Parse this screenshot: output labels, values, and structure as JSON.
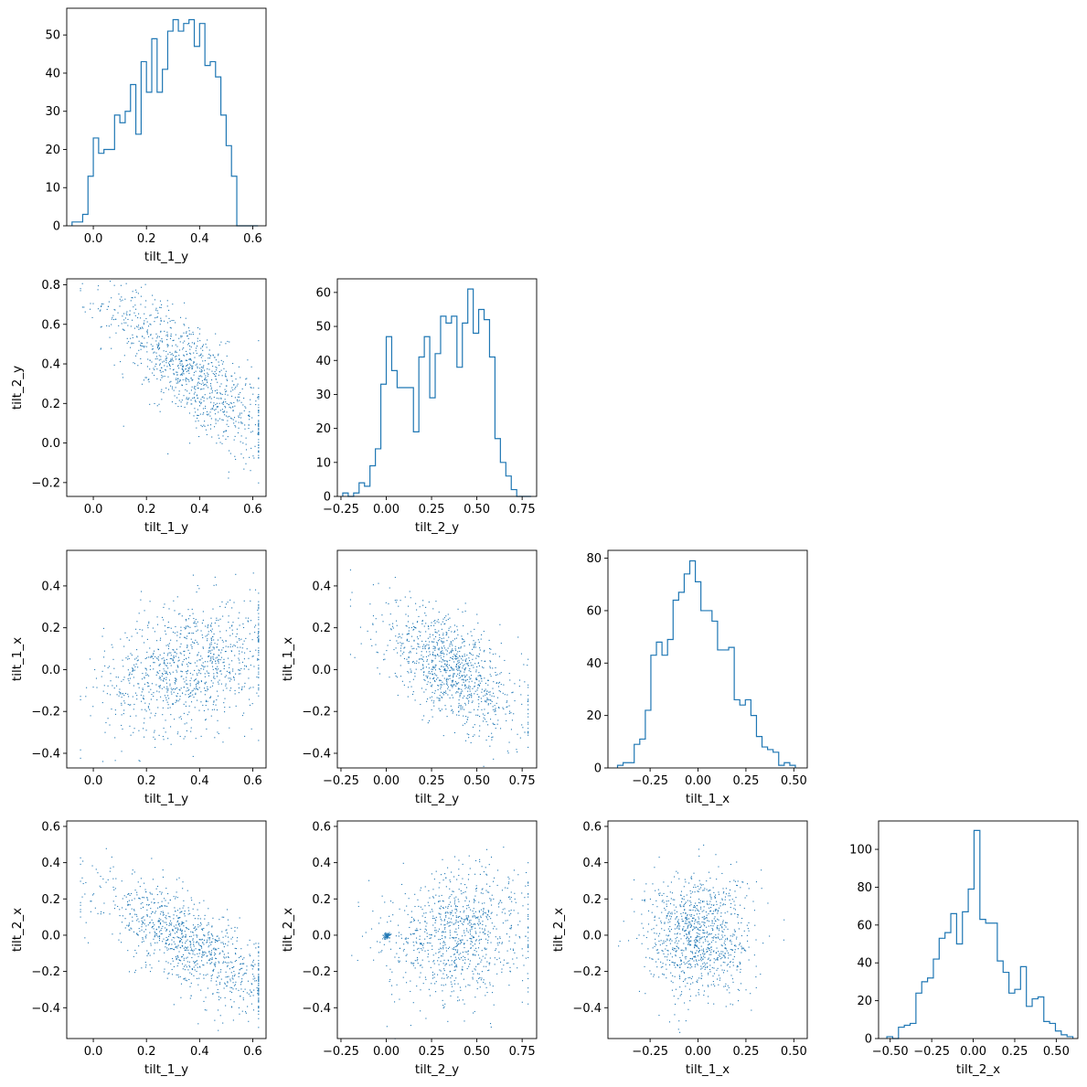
{
  "chart_data": {
    "type": "corner",
    "variables": [
      "tilt_1_y",
      "tilt_2_y",
      "tilt_1_x",
      "tilt_2_x"
    ],
    "line_color": "#1f77b4",
    "axes": {
      "tilt_1_y": {
        "lim": [
          -0.1,
          0.65
        ],
        "ticks": [
          0.0,
          0.2,
          0.4,
          0.6
        ],
        "tick_labels": [
          "0.0",
          "0.2",
          "0.4",
          "0.6"
        ]
      },
      "tilt_2_y": {
        "lim": [
          -0.27,
          0.83
        ],
        "ticks": [
          -0.25,
          0.0,
          0.25,
          0.5,
          0.75
        ],
        "tick_labels": [
          "−0.25",
          "0.00",
          "0.25",
          "0.50",
          "0.75"
        ],
        "ticks_y": [
          -0.2,
          0.0,
          0.2,
          0.4,
          0.6,
          0.8
        ],
        "tick_labels_y": [
          "−0.2",
          "0.0",
          "0.2",
          "0.4",
          "0.6",
          "0.8"
        ]
      },
      "tilt_1_x": {
        "lim": [
          -0.47,
          0.57
        ],
        "ticks": [
          -0.25,
          0.0,
          0.25,
          0.5
        ],
        "tick_labels": [
          "−0.25",
          "0.00",
          "0.25",
          "0.50"
        ],
        "ticks_y": [
          -0.4,
          -0.2,
          0.0,
          0.2,
          0.4
        ],
        "tick_labels_y": [
          "−0.4",
          "−0.2",
          "0.0",
          "0.2",
          "0.4"
        ]
      },
      "tilt_2_x": {
        "lim": [
          -0.57,
          0.63
        ],
        "ticks": [
          -0.5,
          -0.25,
          0.0,
          0.25,
          0.5
        ],
        "tick_labels": [
          "−0.50",
          "−0.25",
          "0.00",
          "0.25",
          "0.50"
        ],
        "ticks_y": [
          -0.4,
          -0.2,
          0.0,
          0.2,
          0.4,
          0.6
        ],
        "tick_labels_y": [
          "−0.4",
          "−0.2",
          "0.0",
          "0.2",
          "0.4",
          "0.6"
        ]
      }
    },
    "histograms": [
      {
        "variable": "tilt_1_y",
        "bin_edges": [
          -0.08,
          -0.06,
          -0.04,
          -0.02,
          0.0,
          0.02,
          0.04,
          0.06,
          0.08,
          0.1,
          0.12,
          0.14,
          0.16,
          0.18,
          0.2,
          0.22,
          0.24,
          0.26,
          0.28,
          0.3,
          0.32,
          0.34,
          0.36,
          0.38,
          0.4,
          0.42,
          0.44,
          0.46,
          0.48,
          0.5,
          0.52,
          0.54,
          0.56,
          0.58,
          0.6,
          0.62
        ],
        "counts": [
          1,
          1,
          3,
          13,
          23,
          19,
          20,
          20,
          29,
          27,
          30,
          37,
          24,
          43,
          35,
          49,
          35,
          41,
          51,
          54,
          51,
          53,
          54,
          47,
          53,
          42,
          43,
          39,
          29,
          21,
          13,
          0,
          0,
          0,
          0
        ],
        "ylim": [
          0,
          57
        ],
        "yticks": [
          0,
          10,
          20,
          30,
          40,
          50
        ],
        "ytick_labels": [
          "0",
          "10",
          "20",
          "30",
          "40",
          "50"
        ]
      },
      {
        "variable": "tilt_2_y",
        "bin_edges": [
          -0.24,
          -0.21,
          -0.18,
          -0.15,
          -0.12,
          -0.09,
          -0.06,
          -0.03,
          0.0,
          0.03,
          0.06,
          0.09,
          0.12,
          0.15,
          0.18,
          0.21,
          0.24,
          0.27,
          0.3,
          0.33,
          0.36,
          0.39,
          0.42,
          0.45,
          0.48,
          0.51,
          0.54,
          0.57,
          0.6,
          0.63,
          0.66,
          0.69,
          0.72,
          0.75,
          0.78,
          0.8
        ],
        "counts": [
          1,
          0,
          1,
          4,
          3,
          9,
          14,
          33,
          47,
          37,
          32,
          32,
          32,
          19,
          41,
          47,
          29,
          42,
          53,
          51,
          53,
          38,
          51,
          61,
          48,
          55,
          52,
          41,
          17,
          10,
          6,
          2,
          0,
          0,
          0
        ],
        "ylim": [
          0,
          64
        ],
        "yticks": [
          0,
          10,
          20,
          30,
          40,
          50,
          60
        ],
        "ytick_labels": [
          "0",
          "10",
          "20",
          "30",
          "40",
          "50",
          "60"
        ]
      },
      {
        "variable": "tilt_1_x",
        "bin_edges": [
          -0.42,
          -0.391,
          -0.362,
          -0.333,
          -0.304,
          -0.275,
          -0.246,
          -0.217,
          -0.188,
          -0.159,
          -0.13,
          -0.101,
          -0.072,
          -0.043,
          -0.014,
          0.015,
          0.044,
          0.073,
          0.102,
          0.131,
          0.16,
          0.189,
          0.218,
          0.247,
          0.276,
          0.305,
          0.334,
          0.363,
          0.392,
          0.421,
          0.45,
          0.479,
          0.508
        ],
        "counts": [
          1,
          2,
          2,
          9,
          11,
          22,
          43,
          48,
          43,
          49,
          64,
          67,
          74,
          79,
          71,
          60,
          60,
          56,
          45,
          45,
          46,
          26,
          24,
          26,
          20,
          12,
          8,
          7,
          6,
          1,
          2,
          1
        ],
        "ylim": [
          0,
          83
        ],
        "yticks": [
          0,
          20,
          40,
          60,
          80
        ],
        "ytick_labels": [
          "0",
          "20",
          "40",
          "60",
          "80"
        ]
      },
      {
        "variable": "tilt_2_x",
        "bin_edges": [
          -0.52,
          -0.485,
          -0.45,
          -0.415,
          -0.38,
          -0.345,
          -0.31,
          -0.275,
          -0.24,
          -0.205,
          -0.17,
          -0.135,
          -0.1,
          -0.065,
          -0.03,
          0.005,
          0.04,
          0.075,
          0.11,
          0.145,
          0.18,
          0.215,
          0.25,
          0.285,
          0.32,
          0.355,
          0.39,
          0.425,
          0.46,
          0.495,
          0.53,
          0.565,
          0.6
        ],
        "counts": [
          1,
          0,
          6,
          7,
          8,
          24,
          30,
          32,
          42,
          53,
          56,
          66,
          50,
          67,
          79,
          110,
          63,
          61,
          61,
          41,
          35,
          24,
          26,
          38,
          17,
          21,
          22,
          9,
          8,
          4,
          2,
          1
        ],
        "ylim": [
          0,
          115
        ],
        "yticks": [
          0,
          20,
          40,
          60,
          80,
          100
        ],
        "ytick_labels": [
          "0",
          "20",
          "40",
          "60",
          "80",
          "100"
        ]
      }
    ],
    "scatter_panels": [
      {
        "x": "tilt_1_y",
        "y": "tilt_2_y",
        "n_points": 1000,
        "trend_description": "negative correlation, points spanning from upper-left to lower-right",
        "x_range": [
          -0.05,
          0.63
        ],
        "y_range": [
          -0.22,
          0.8
        ]
      },
      {
        "x": "tilt_1_y",
        "y": "tilt_1_x",
        "n_points": 1000,
        "trend_description": "weak positive correlation",
        "x_range": [
          -0.05,
          0.63
        ],
        "y_range": [
          -0.43,
          0.52
        ]
      },
      {
        "x": "tilt_2_y",
        "y": "tilt_1_x",
        "n_points": 1000,
        "trend_description": "negative correlation",
        "x_range": [
          -0.22,
          0.8
        ],
        "y_range": [
          -0.43,
          0.52
        ]
      },
      {
        "x": "tilt_1_y",
        "y": "tilt_2_x",
        "n_points": 1000,
        "trend_description": "negative correlation",
        "x_range": [
          -0.05,
          0.63
        ],
        "y_range": [
          -0.52,
          0.58
        ]
      },
      {
        "x": "tilt_2_y",
        "y": "tilt_2_x",
        "n_points": 1000,
        "trend_description": "weak positive spread with dense cluster near (0, 0)",
        "x_range": [
          -0.22,
          0.8
        ],
        "y_range": [
          -0.52,
          0.58
        ]
      },
      {
        "x": "tilt_1_x",
        "y": "tilt_2_x",
        "n_points": 1000,
        "trend_description": "no strong correlation, diamond-shaped cloud centered at (0, 0)",
        "x_range": [
          -0.43,
          0.52
        ],
        "y_range": [
          -0.52,
          0.58
        ]
      }
    ]
  }
}
